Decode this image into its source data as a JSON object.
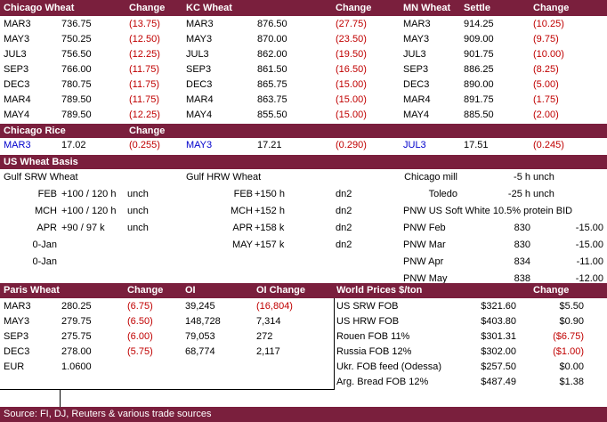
{
  "futures": {
    "headers": [
      "Chicago Wheat",
      "Change",
      "KC Wheat",
      "Change",
      "MN Wheat",
      "Settle",
      "Change"
    ],
    "chicago": [
      [
        "MAR3",
        "736.75",
        "(13.75)"
      ],
      [
        "MAY3",
        "750.25",
        "(12.50)"
      ],
      [
        "JUL3",
        "756.50",
        "(12.25)"
      ],
      [
        "SEP3",
        "766.00",
        "(11.75)"
      ],
      [
        "DEC3",
        "780.75",
        "(11.75)"
      ],
      [
        "MAR4",
        "789.50",
        "(11.75)"
      ],
      [
        "MAY4",
        "789.50",
        "(12.25)"
      ]
    ],
    "kc": [
      [
        "MAR3",
        "876.50",
        "(27.75)"
      ],
      [
        "MAY3",
        "870.00",
        "(23.50)"
      ],
      [
        "JUL3",
        "862.00",
        "(19.50)"
      ],
      [
        "SEP3",
        "861.50",
        "(16.50)"
      ],
      [
        "DEC3",
        "865.75",
        "(15.00)"
      ],
      [
        "MAR4",
        "863.75",
        "(15.00)"
      ],
      [
        "MAY4",
        "855.50",
        "(15.00)"
      ]
    ],
    "mn": [
      [
        "MAR3",
        "914.25",
        "(10.25)"
      ],
      [
        "MAY3",
        "909.00",
        "(9.75)"
      ],
      [
        "JUL3",
        "901.75",
        "(10.00)"
      ],
      [
        "SEP3",
        "886.25",
        "(8.25)"
      ],
      [
        "DEC3",
        "890.00",
        "(5.00)"
      ],
      [
        "MAR4",
        "891.75",
        "(1.75)"
      ],
      [
        "MAY4",
        "885.50",
        "(2.00)"
      ]
    ]
  },
  "rice": {
    "title": "Chicago Rice",
    "change_label": "Change",
    "items": [
      [
        "MAR3",
        "17.02",
        "(0.255)"
      ],
      [
        "MAY3",
        "17.21",
        "(0.290)"
      ],
      [
        "JUL3",
        "17.51",
        "(0.245)"
      ]
    ]
  },
  "basis": {
    "title": "US Wheat Basis",
    "srw_title": "Gulf SRW Wheat",
    "srw": [
      [
        "FEB",
        "+100 / 120 h",
        "unch"
      ],
      [
        "MCH",
        "+100 / 120 h",
        "unch"
      ],
      [
        "APR",
        "+90 / 97 k",
        "unch"
      ],
      [
        "0-Jan",
        "",
        ""
      ],
      [
        "0-Jan",
        "",
        ""
      ]
    ],
    "hrw_title": "Gulf HRW Wheat",
    "hrw": [
      [
        "FEB",
        "+150 h",
        "dn2"
      ],
      [
        "MCH",
        "+152 h",
        "dn2"
      ],
      [
        "APR",
        "+158 k",
        "dn2"
      ],
      [
        "MAY",
        "+157 k",
        "dn2"
      ]
    ],
    "mill": [
      [
        "Chicago mill",
        "-5 h",
        "unch"
      ],
      [
        "Toledo",
        "-25 h",
        "unch"
      ]
    ],
    "pnw_title": "PNW US Soft White 10.5% protein BID",
    "pnw": [
      [
        "PNW Feb",
        "830",
        "-15.00"
      ],
      [
        "PNW Mar",
        "830",
        "-15.00"
      ],
      [
        "PNW Apr",
        "834",
        "-11.00"
      ],
      [
        "PNW May",
        "838",
        "-12.00"
      ]
    ]
  },
  "paris": {
    "headers": [
      "Paris Wheat",
      "Change",
      "OI",
      "OI Change"
    ],
    "rows": [
      [
        "MAR3",
        "280.25",
        "(6.75)",
        "39,245",
        "(16,804)"
      ],
      [
        "MAY3",
        "279.75",
        "(6.50)",
        "148,728",
        "7,314"
      ],
      [
        "SEP3",
        "275.75",
        "(6.00)",
        "79,053",
        "272"
      ],
      [
        "DEC3",
        "278.00",
        "(5.75)",
        "68,774",
        "2,117"
      ]
    ],
    "eur": [
      "EUR",
      "1.0600"
    ]
  },
  "world": {
    "headers": [
      "World Prices $/ton",
      "Change"
    ],
    "rows": [
      [
        "US SRW FOB",
        "$321.60",
        "$5.50"
      ],
      [
        "US HRW FOB",
        "$403.80",
        "$0.90"
      ],
      [
        "Rouen FOB 11%",
        "$301.31",
        "($6.75)"
      ],
      [
        "Russia FOB 12%",
        "$302.00",
        "($1.00)"
      ],
      [
        "Ukr. FOB feed (Odessa)",
        "$257.50",
        "$0.00"
      ],
      [
        "Arg. Bread FOB 12%",
        "$487.49",
        "$1.38"
      ]
    ]
  },
  "footer": {
    "source": "Source: FI, DJ, Reuters & various trade sources"
  },
  "colors": {
    "header_bg": "#7a1f3d",
    "negative": "#c00000",
    "rice_month": "#0000cc"
  }
}
